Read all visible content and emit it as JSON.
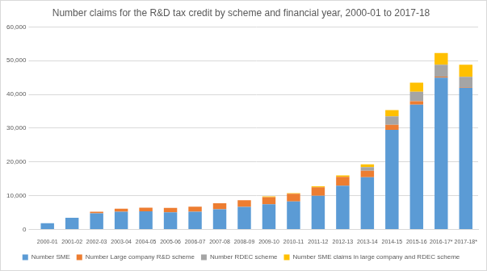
{
  "chart_data": {
    "type": "bar",
    "title": "Number claims for the R&D tax credit by scheme and financial year, 2000-01 to 2017-18",
    "categories": [
      "2000-01",
      "2001-02",
      "2002-03",
      "2003-04",
      "2004-05",
      "2005-06",
      "2006-07",
      "2007-08",
      "2008-09",
      "2009-10",
      "2010-11",
      "2011-12",
      "2012-13",
      "2013-14",
      "2014-15",
      "2015-16",
      "2016-17*",
      "2017-18*"
    ],
    "series": [
      {
        "name": "Number SME",
        "color": "#5b9bd5",
        "values": [
          1900,
          3500,
          4800,
          5300,
          5400,
          5100,
          5300,
          6000,
          6700,
          7500,
          8300,
          10000,
          13000,
          15500,
          29500,
          37000,
          45000,
          42000
        ]
      },
      {
        "name": "Number Large company R&D scheme",
        "color": "#ed7d31",
        "values": [
          null,
          null,
          500,
          900,
          1100,
          1300,
          1500,
          1800,
          2000,
          2100,
          2300,
          2500,
          2600,
          1900,
          1500,
          1000,
          300,
          200
        ]
      },
      {
        "name": "Number RDEC scheme",
        "color": "#a5a5a5",
        "values": [
          null,
          null,
          null,
          null,
          null,
          null,
          null,
          null,
          null,
          null,
          null,
          null,
          null,
          1100,
          2500,
          2800,
          3500,
          3000
        ]
      },
      {
        "name": "Number SME claims in large company and RDEC scheme",
        "color": "#ffc000",
        "values": [
          null,
          null,
          null,
          null,
          null,
          null,
          null,
          null,
          null,
          200,
          200,
          300,
          400,
          800,
          1900,
          2700,
          3500,
          3600
        ]
      }
    ],
    "ylim": [
      0,
      60000
    ],
    "yticks": [
      0,
      {
        "value": 10000,
        "label": "10,000"
      },
      {
        "value": 20000,
        "label": "20,000"
      },
      {
        "value": 30000,
        "label": "30,000"
      },
      {
        "value": 40000,
        "label": "40,000"
      },
      {
        "value": 50000,
        "label": "50,000"
      },
      {
        "value": 60000,
        "label": "60,000"
      }
    ],
    "stacked": true,
    "grid": true,
    "legend": "bottom"
  }
}
